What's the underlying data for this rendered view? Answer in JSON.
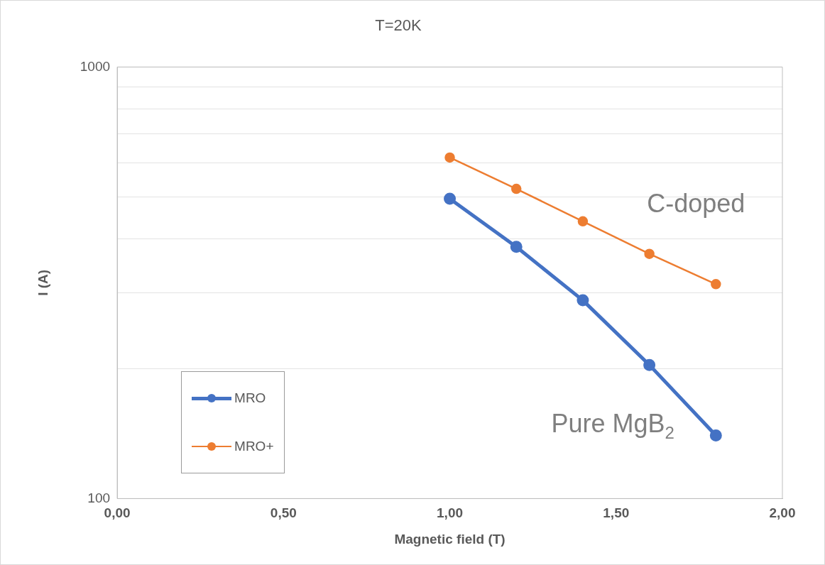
{
  "chart_data": {
    "type": "line",
    "title": "T=20K",
    "xlabel": "Magnetic field (T)",
    "ylabel": "I (A)",
    "x": [
      1.0,
      1.2,
      1.4,
      1.6,
      1.8
    ],
    "series": [
      {
        "name": "MRO",
        "color": "#4472c4",
        "values": [
          495,
          383,
          288,
          204,
          140
        ]
      },
      {
        "name": "MRO+",
        "color": "#ed7d31",
        "values": [
          617,
          522,
          439,
          369,
          314
        ]
      }
    ],
    "log": "y",
    "xlim": [
      0,
      2
    ],
    "xticks": [
      {
        "value": 0,
        "label": "0,00"
      },
      {
        "value": 0.5,
        "label": "0,50"
      },
      {
        "value": 1,
        "label": "1,00"
      },
      {
        "value": 1.5,
        "label": "1,50"
      },
      {
        "value": 2,
        "label": "2,00"
      }
    ],
    "ylim": [
      100,
      1000
    ],
    "yticks": [
      100,
      {
        "value": 200,
        "label": null
      },
      {
        "value": 300,
        "label": null
      },
      {
        "value": 400,
        "label": null
      },
      {
        "value": 500,
        "label": null
      },
      {
        "value": 600,
        "label": null
      },
      {
        "value": 700,
        "label": null
      },
      {
        "value": 800,
        "label": null
      },
      {
        "value": 900,
        "label": null
      },
      1000
    ],
    "grid": "y",
    "legend": "bottom left",
    "marker": "circle",
    "line_style": "solid",
    "annotations": [
      "C-doped",
      "Pure MgB$_{2}$"
    ]
  }
}
